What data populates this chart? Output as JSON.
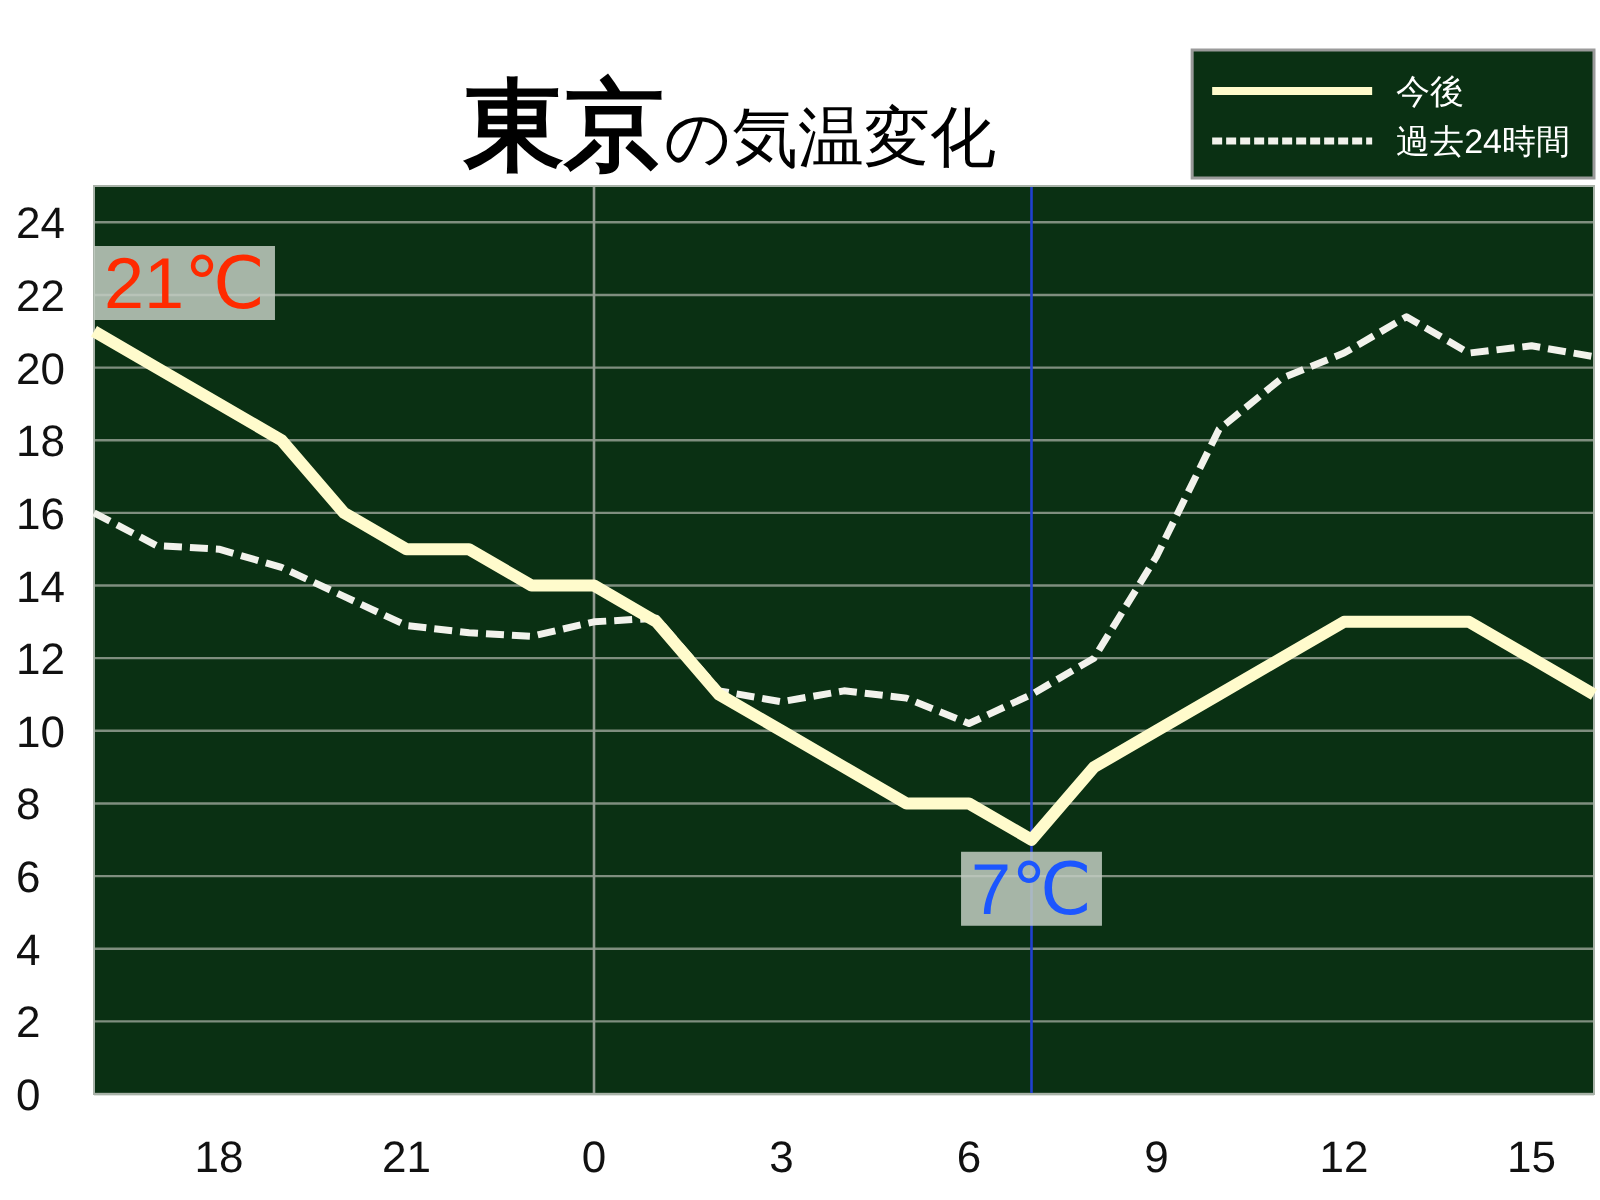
{
  "chart_data": {
    "type": "line",
    "title": "**東京**の気温変化",
    "categories": [
      null,
      null,
      "18",
      null,
      null,
      "21",
      null,
      null,
      "0",
      null,
      null,
      "3",
      null,
      null,
      "6",
      null,
      null,
      "9",
      null,
      null,
      "12",
      null,
      null,
      "15",
      null
    ],
    "ylim": [
      0,
      25
    ],
    "yticks": [
      0,
      2,
      4,
      6,
      8,
      10,
      12,
      14,
      16,
      18,
      20,
      22,
      24
    ],
    "grid": "y",
    "legend": "top right",
    "series": [
      {
        "name": "今後",
        "color": "#fffbcc",
        "line_style": "solid",
        "values": [
          21,
          20,
          19,
          18,
          16,
          15,
          15,
          14,
          14,
          13,
          11,
          10,
          9,
          8,
          8,
          7,
          9,
          10,
          11,
          12,
          13,
          13,
          13,
          12,
          11
        ]
      },
      {
        "name": "過去24時間",
        "color": "#f2f2ec",
        "line_style": "dashed",
        "values": [
          16,
          15.1,
          15,
          14.5,
          13.7,
          12.9,
          12.7,
          12.6,
          13,
          13.1,
          11.1,
          10.8,
          11.1,
          10.9,
          10.2,
          11,
          12,
          14.8,
          18.3,
          19.7,
          20.4,
          21.4,
          20.4,
          20.6,
          20.3
        ]
      }
    ],
    "ref_lines": [
      {
        "axis": "x",
        "value": "0",
        "color": "#8f9a8f"
      }
    ],
    "annotations": [
      "21℃",
      {
        "text": "7℃",
        "y": 7
      }
    ]
  }
}
